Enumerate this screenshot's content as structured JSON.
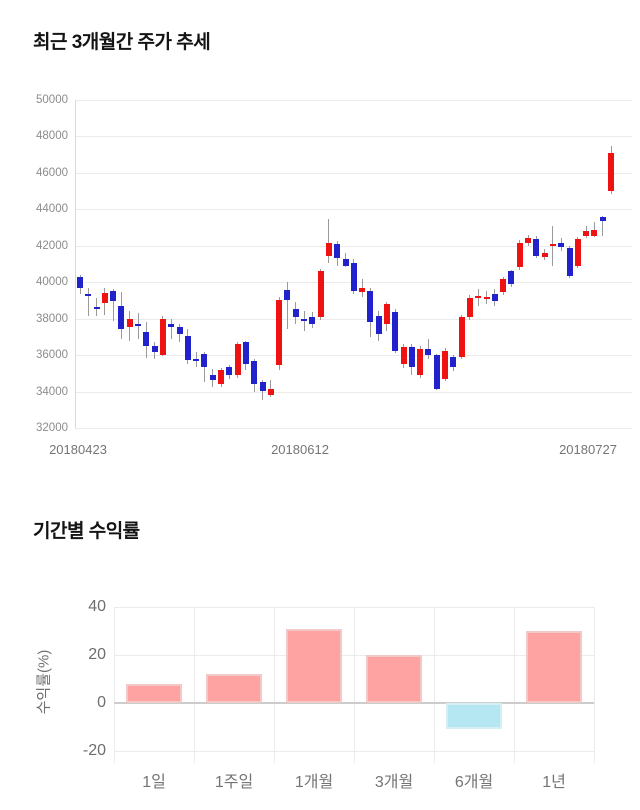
{
  "chart_data": [
    {
      "type": "candlestick",
      "title": "최근 3개월간 주가 추세",
      "ylabel": "",
      "xlabel": "",
      "ylim": [
        32000,
        50000
      ],
      "y_ticks": [
        50000,
        48000,
        46000,
        44000,
        42000,
        40000,
        38000,
        36000,
        34000,
        32000
      ],
      "x_ticks": [
        "20180423",
        "20180612",
        "20180727"
      ],
      "grid": "horizontal",
      "up_color": "#ef1212",
      "down_color": "#2222cd",
      "wick_color": "#9a9a9a",
      "candles_format": [
        "open",
        "high",
        "low",
        "close"
      ],
      "candles": [
        [
          40300,
          40380,
          39340,
          39700
        ],
        [
          39360,
          39690,
          38120,
          39300
        ],
        [
          38630,
          39160,
          38140,
          38570
        ],
        [
          38880,
          39690,
          38210,
          39430
        ],
        [
          39510,
          39620,
          37890,
          38960
        ],
        [
          38700,
          39440,
          36880,
          37450
        ],
        [
          37530,
          38440,
          36790,
          37990
        ],
        [
          37700,
          38310,
          36900,
          37610
        ],
        [
          37250,
          37810,
          35820,
          36520
        ],
        [
          36520,
          36710,
          35800,
          36160
        ],
        [
          36000,
          38170,
          35950,
          37980
        ],
        [
          37700,
          37990,
          36880,
          37540
        ],
        [
          37530,
          37710,
          36700,
          37160
        ],
        [
          37070,
          37440,
          35520,
          35710
        ],
        [
          35760,
          36170,
          35340,
          35650
        ],
        [
          36050,
          36160,
          34520,
          35340
        ],
        [
          34890,
          35260,
          34250,
          34660
        ],
        [
          34430,
          35270,
          34250,
          35160
        ],
        [
          35340,
          35450,
          34700,
          34890
        ],
        [
          34890,
          36700,
          34750,
          36610
        ],
        [
          36700,
          36800,
          35160,
          35520
        ],
        [
          35700,
          35810,
          33990,
          34400
        ],
        [
          34520,
          34660,
          33520,
          34010
        ],
        [
          33810,
          34610,
          33700,
          34160
        ],
        [
          35430,
          39210,
          35160,
          39010
        ],
        [
          39560,
          40020,
          37450,
          39010
        ],
        [
          38520,
          38910,
          37700,
          38070
        ],
        [
          37990,
          38440,
          37340,
          37950
        ],
        [
          38070,
          38360,
          37510,
          37700
        ],
        [
          38070,
          40730,
          37950,
          40620
        ],
        [
          41440,
          43450,
          41080,
          42170
        ],
        [
          42080,
          42250,
          40890,
          41350
        ],
        [
          41260,
          41630,
          40850,
          40890
        ],
        [
          41080,
          41270,
          39340,
          39530
        ],
        [
          39480,
          40160,
          39170,
          39710
        ],
        [
          39530,
          39700,
          36980,
          37800
        ],
        [
          38160,
          38410,
          36790,
          37160
        ],
        [
          37700,
          38910,
          37310,
          38800
        ],
        [
          38340,
          38510,
          36110,
          36250
        ],
        [
          35520,
          36600,
          35310,
          36430
        ],
        [
          36430,
          36610,
          34890,
          35340
        ],
        [
          34890,
          36510,
          34760,
          36340
        ],
        [
          36340,
          36910,
          35810,
          35980
        ],
        [
          35980,
          36060,
          34060,
          34160
        ],
        [
          34710,
          36410,
          34560,
          36250
        ],
        [
          35890,
          36010,
          35110,
          35340
        ],
        [
          35890,
          38210,
          35760,
          38070
        ],
        [
          38070,
          39310,
          37910,
          39160
        ],
        [
          39110,
          39610,
          38710,
          39260
        ],
        [
          39160,
          39510,
          38810,
          39210
        ],
        [
          39340,
          39610,
          38710,
          38980
        ],
        [
          39440,
          40310,
          39310,
          40160
        ],
        [
          40600,
          40660,
          39710,
          39890
        ],
        [
          40810,
          42310,
          40660,
          42170
        ],
        [
          42170,
          42610,
          42010,
          42440
        ],
        [
          42350,
          42510,
          41310,
          41440
        ],
        [
          41360,
          41810,
          41210,
          41620
        ],
        [
          42060,
          43090,
          40890,
          42110
        ],
        [
          42130,
          42410,
          41710,
          41930
        ],
        [
          41890,
          42010,
          40210,
          40340
        ],
        [
          40890,
          42460,
          40760,
          42350
        ],
        [
          42530,
          43090,
          42410,
          42810
        ],
        [
          42560,
          43310,
          42460,
          42840
        ],
        [
          43590,
          43660,
          42530,
          43350
        ],
        [
          45010,
          47450,
          44860,
          47090
        ]
      ]
    },
    {
      "type": "bar",
      "title": "기간별 수익률",
      "ylabel": "수익률(%)",
      "xlabel": "",
      "ylim": [
        -20,
        40
      ],
      "y_ticks": [
        40,
        20,
        0,
        -20
      ],
      "categories": [
        "1일",
        "1주일",
        "1개월",
        "3개월",
        "6개월",
        "1년"
      ],
      "values": [
        8,
        12,
        31,
        20,
        -11,
        30
      ],
      "grid": "both",
      "legend": "none",
      "positive_color": "#ffa2a2",
      "positive_border": "#f3c8c8",
      "negative_color": "#b4e7f1",
      "negative_border": "#d5eff5",
      "zero_line_color": "#cccccc"
    }
  ]
}
